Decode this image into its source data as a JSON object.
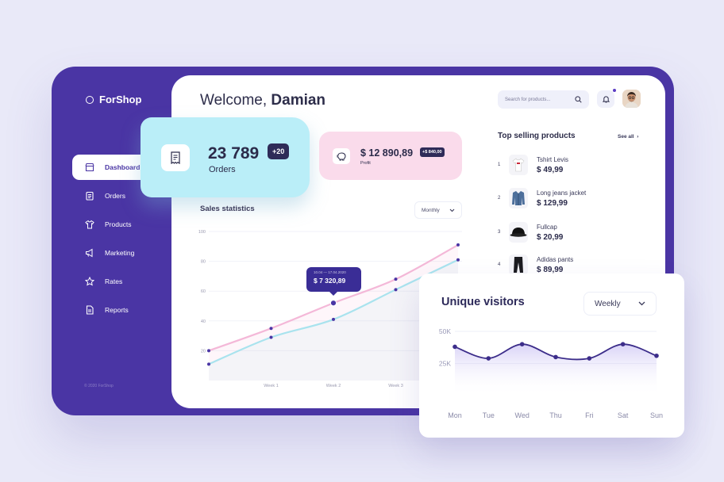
{
  "brand": {
    "name": "ForShop"
  },
  "sidebar": {
    "items": [
      {
        "label": "Dashboard",
        "icon": "store-icon",
        "active": true
      },
      {
        "label": "Orders",
        "icon": "clipboard-icon"
      },
      {
        "label": "Products",
        "icon": "shirt-icon"
      },
      {
        "label": "Marketing",
        "icon": "megaphone-icon"
      },
      {
        "label": "Rates",
        "icon": "star-icon"
      },
      {
        "label": "Reports",
        "icon": "document-icon"
      }
    ],
    "copyright": "© 2020 ForShop"
  },
  "header": {
    "welcome": "Welcome,",
    "user": "Damian",
    "search_placeholder": "Search for products..."
  },
  "orders": {
    "value": "23 789",
    "label": "Orders",
    "badge": "+20"
  },
  "profit": {
    "value": "$ 12 890,89",
    "label": "Profit",
    "badge": "+$ 840,00"
  },
  "sales": {
    "title": "Sales statistics",
    "period": "Monthly",
    "tooltip": {
      "dates": "10.04 — 17.04.2020",
      "value": "$ 7 320,89"
    }
  },
  "top_products": {
    "title": "Top selling products",
    "see_all": "See all",
    "items": [
      {
        "rank": "1",
        "name": "Tshirt Levis",
        "price": "$ 49,99"
      },
      {
        "rank": "2",
        "name": "Long jeans jacket",
        "price": "$ 129,99"
      },
      {
        "rank": "3",
        "name": "Fullcap",
        "price": "$ 20,99"
      },
      {
        "rank": "4",
        "name": "Adidas pants",
        "price": "$ 89,99"
      }
    ]
  },
  "visitors": {
    "title": "Unique visitors",
    "period": "Weekly"
  },
  "colors": {
    "primary": "#4a35a4",
    "pink": "#f6b7d6",
    "cyan": "#a8e4ef",
    "dark": "#2e2b58"
  },
  "chart_data": [
    {
      "type": "line",
      "title": "Sales statistics",
      "categories": [
        "",
        "Week 1",
        "Week 2",
        "Week 3",
        ""
      ],
      "yticks": [
        20,
        40,
        60,
        80,
        100
      ],
      "ylim": [
        0,
        100
      ],
      "series": [
        {
          "values": [
            20,
            35,
            52,
            68,
            91
          ]
        },
        {
          "values": [
            11,
            29,
            41,
            61,
            81
          ]
        }
      ]
    },
    {
      "type": "area",
      "title": "Unique visitors",
      "categories": [
        "Mon",
        "Tue",
        "Wed",
        "Thu",
        "Fri",
        "Sat",
        "Sun"
      ],
      "yticks": [
        "25K",
        "50K"
      ],
      "series": [
        {
          "values": [
            38,
            29,
            40,
            30,
            29,
            40,
            31
          ]
        }
      ]
    }
  ]
}
